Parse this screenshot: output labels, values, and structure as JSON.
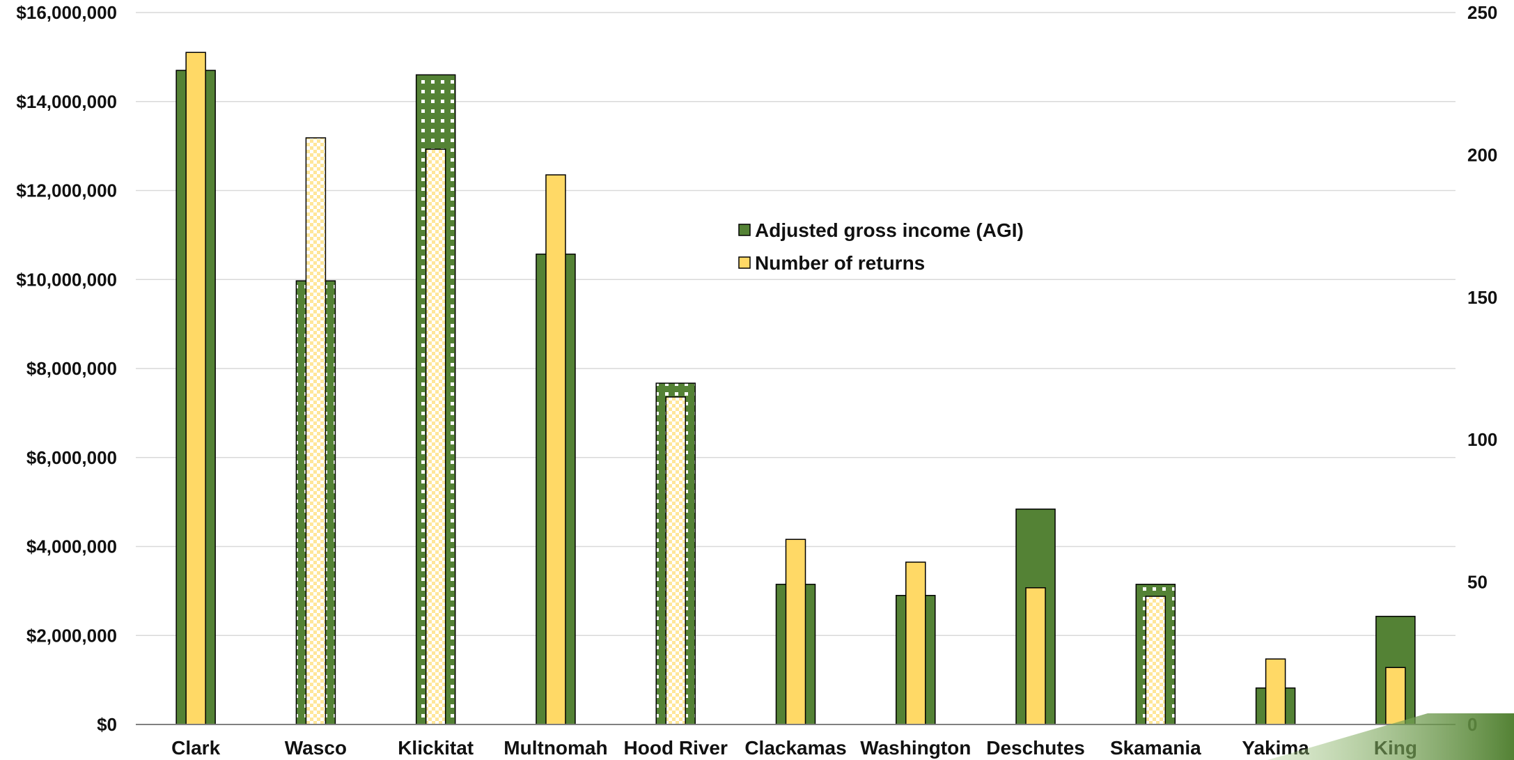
{
  "chart_data": {
    "type": "bar",
    "categories": [
      "Clark",
      "Wasco",
      "Klickitat",
      "Multnomah",
      "Hood River",
      "Clackamas",
      "Washington",
      "Deschutes",
      "Skamania",
      "Yakima",
      "King"
    ],
    "series": [
      {
        "name": "Adjusted gross income (AGI)",
        "axis": "left",
        "color": "#548235",
        "values": [
          14700000,
          9970000,
          14600000,
          10570000,
          7670000,
          3150000,
          2900000,
          4840000,
          3150000,
          820000,
          2430000
        ],
        "patterned": [
          false,
          true,
          true,
          false,
          true,
          false,
          false,
          false,
          true,
          false,
          false
        ]
      },
      {
        "name": "Number of returns",
        "axis": "right",
        "color": "#FFD966",
        "values": [
          236,
          206,
          202,
          193,
          115,
          65,
          57,
          48,
          45,
          23,
          20
        ],
        "patterned": [
          false,
          true,
          true,
          false,
          true,
          false,
          false,
          false,
          true,
          false,
          false
        ]
      }
    ],
    "y_left": {
      "ylim": [
        0,
        16000000
      ],
      "ticks": [
        0,
        2000000,
        4000000,
        6000000,
        8000000,
        10000000,
        12000000,
        14000000,
        16000000
      ],
      "tick_labels": [
        "$0",
        "$2,000,000",
        "$4,000,000",
        "$6,000,000",
        "$8,000,000",
        "$10,000,000",
        "$12,000,000",
        "$14,000,000",
        "$16,000,000"
      ]
    },
    "y_right": {
      "ylim": [
        0,
        250
      ],
      "ticks": [
        0,
        50,
        100,
        150,
        200,
        250
      ],
      "tick_labels": [
        "0",
        "50",
        "100",
        "150",
        "200",
        "250"
      ]
    },
    "grid": true,
    "legend_placement": "center"
  }
}
